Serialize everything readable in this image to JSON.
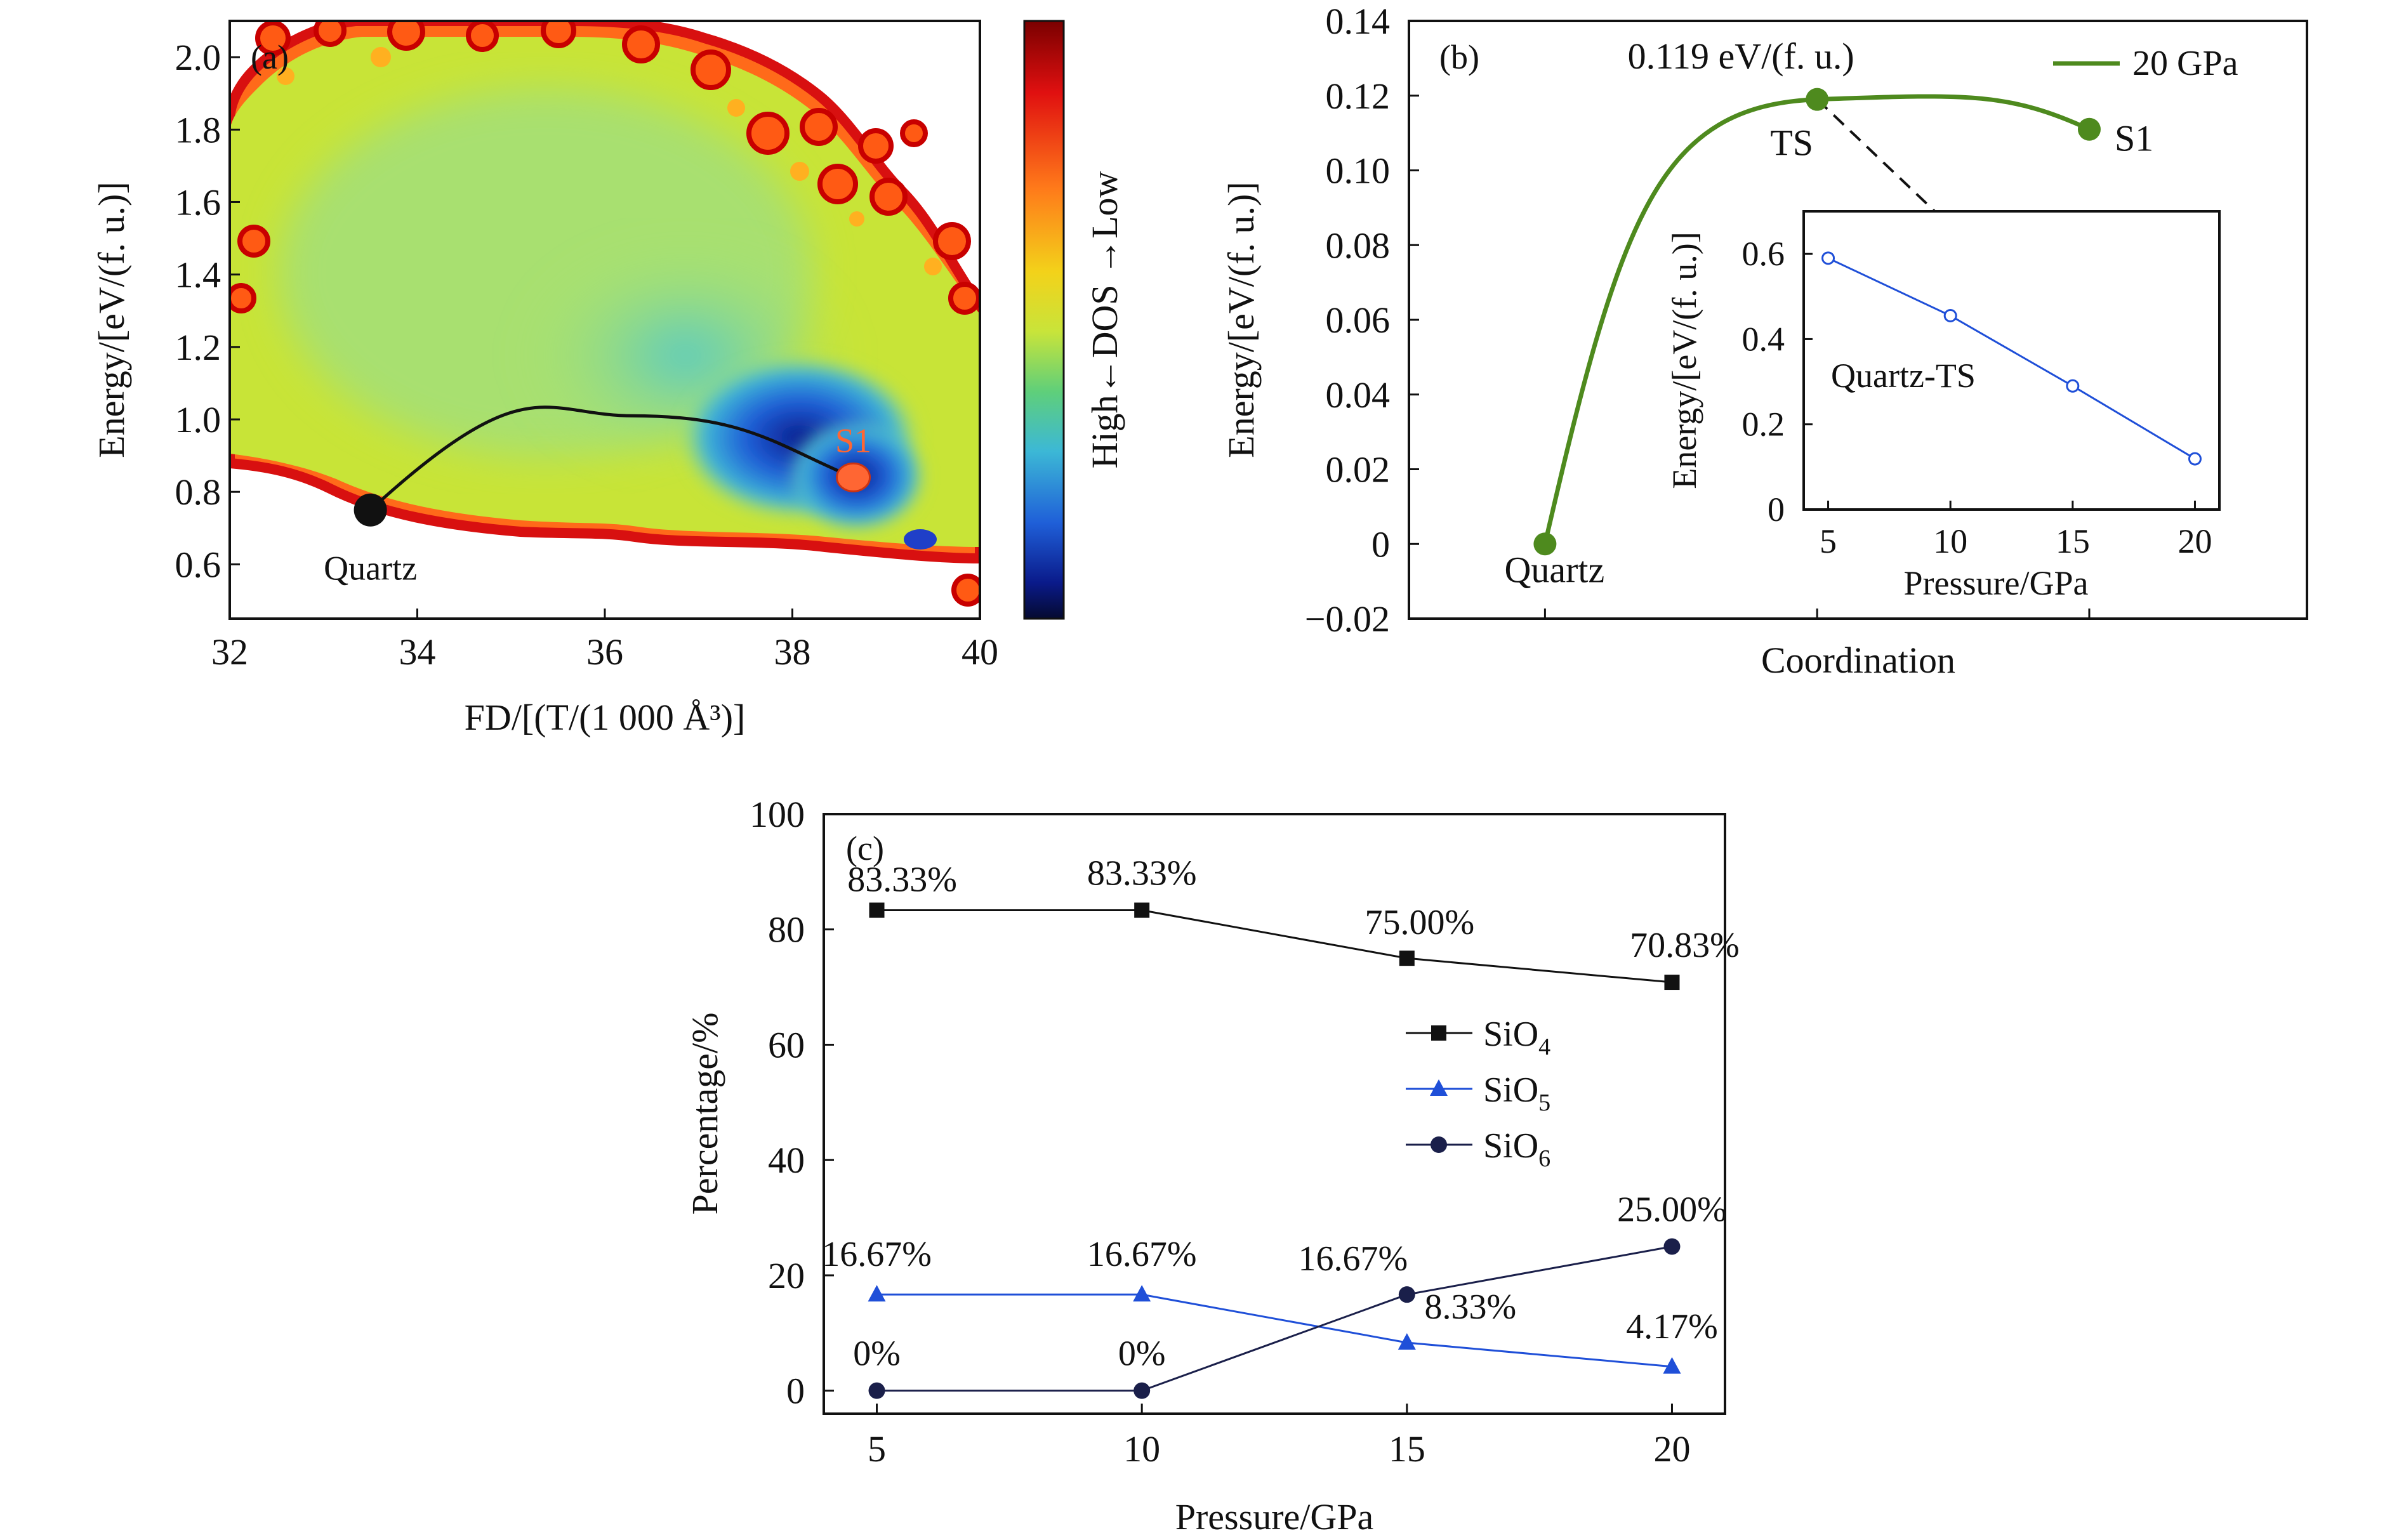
{
  "chart_data": [
    {
      "panel": "(a)",
      "type": "heatmap",
      "xlabel": "FD/[(T/(1 000 Å³)]",
      "ylabel": "Energy/[eV/(f. u.)]",
      "xlim": [
        32,
        40
      ],
      "ylim": [
        0.45,
        2.1
      ],
      "xticks": [
        "32",
        "34",
        "36",
        "38",
        "40"
      ],
      "yticks": [
        "0.6",
        "0.8",
        "1.0",
        "1.2",
        "1.4",
        "1.6",
        "1.8",
        "2.0"
      ],
      "colorbar_label": "High←DOS →Low",
      "colors": {
        "low_dos": "#cc0000",
        "mid_dos": "#d9e830",
        "high_dos": "#0a1a8a",
        "path": "#111111",
        "quartz": "#111111",
        "s1": "#ff6633"
      },
      "points": [
        {
          "label": "Quartz",
          "x": 33.5,
          "y": 0.75
        },
        {
          "label": "S1",
          "x": 38.65,
          "y": 0.84
        }
      ],
      "path_peak": {
        "x": 36.3,
        "y": 1.01
      }
    },
    {
      "panel": "(b)",
      "type": "line",
      "xlabel": "Coordination",
      "ylabel": "Energy/[eV/(f. u.)]",
      "ylim": [
        -0.02,
        0.14
      ],
      "yticks": [
        "−0.02",
        "0",
        "0.02",
        "0.04",
        "0.06",
        "0.08",
        "0.10",
        "0.12",
        "0.14"
      ],
      "legend": "20 GPa",
      "annotation": "0.119 eV/(f. u.)",
      "color": "#4e8a1e",
      "points": [
        {
          "label": "Quartz",
          "x": 1,
          "y": 0
        },
        {
          "label": "TS",
          "x": 2,
          "y": 0.119
        },
        {
          "label": "S1",
          "x": 3,
          "y": 0.111
        }
      ],
      "inset": {
        "type": "line",
        "label": "Quartz-TS",
        "xlabel": "Pressure/GPa",
        "ylabel": "Energy/[eV/(f. u.)]",
        "xlim": [
          4,
          21
        ],
        "ylim": [
          0,
          0.7
        ],
        "xticks": [
          "5",
          "10",
          "15",
          "20"
        ],
        "yticks": [
          "0",
          "0.2",
          "0.4",
          "0.6"
        ],
        "x": [
          5,
          10,
          15,
          20
        ],
        "values": [
          0.59,
          0.455,
          0.29,
          0.119
        ],
        "color": "#1f4fd8"
      }
    },
    {
      "panel": "(c)",
      "type": "line",
      "xlabel": "Pressure/GPa",
      "ylabel": "Percentage/%",
      "xlim": [
        4,
        21
      ],
      "ylim": [
        -4,
        100
      ],
      "xticks": [
        "5",
        "10",
        "15",
        "20"
      ],
      "yticks": [
        "0",
        "20",
        "40",
        "60",
        "80",
        "100"
      ],
      "x": [
        5,
        10,
        15,
        20
      ],
      "series": [
        {
          "name": "SiO",
          "sub": "4",
          "marker": "square",
          "color": "#111111",
          "values": [
            83.33,
            83.33,
            75.0,
            70.83
          ],
          "labels": [
            "83.33%",
            "83.33%",
            "75.00%",
            "70.83%"
          ]
        },
        {
          "name": "SiO",
          "sub": "5",
          "marker": "triangle",
          "color": "#1f4fd8",
          "values": [
            16.67,
            16.67,
            8.33,
            4.17
          ],
          "labels": [
            "16.67%",
            "16.67%",
            "8.33%",
            "4.17%"
          ]
        },
        {
          "name": "SiO",
          "sub": "6",
          "marker": "circle",
          "color": "#1a1f4a",
          "values": [
            0,
            0,
            16.67,
            25.0
          ],
          "labels": [
            "0%",
            "0%",
            "16.67%",
            "25.00%"
          ]
        }
      ]
    }
  ]
}
